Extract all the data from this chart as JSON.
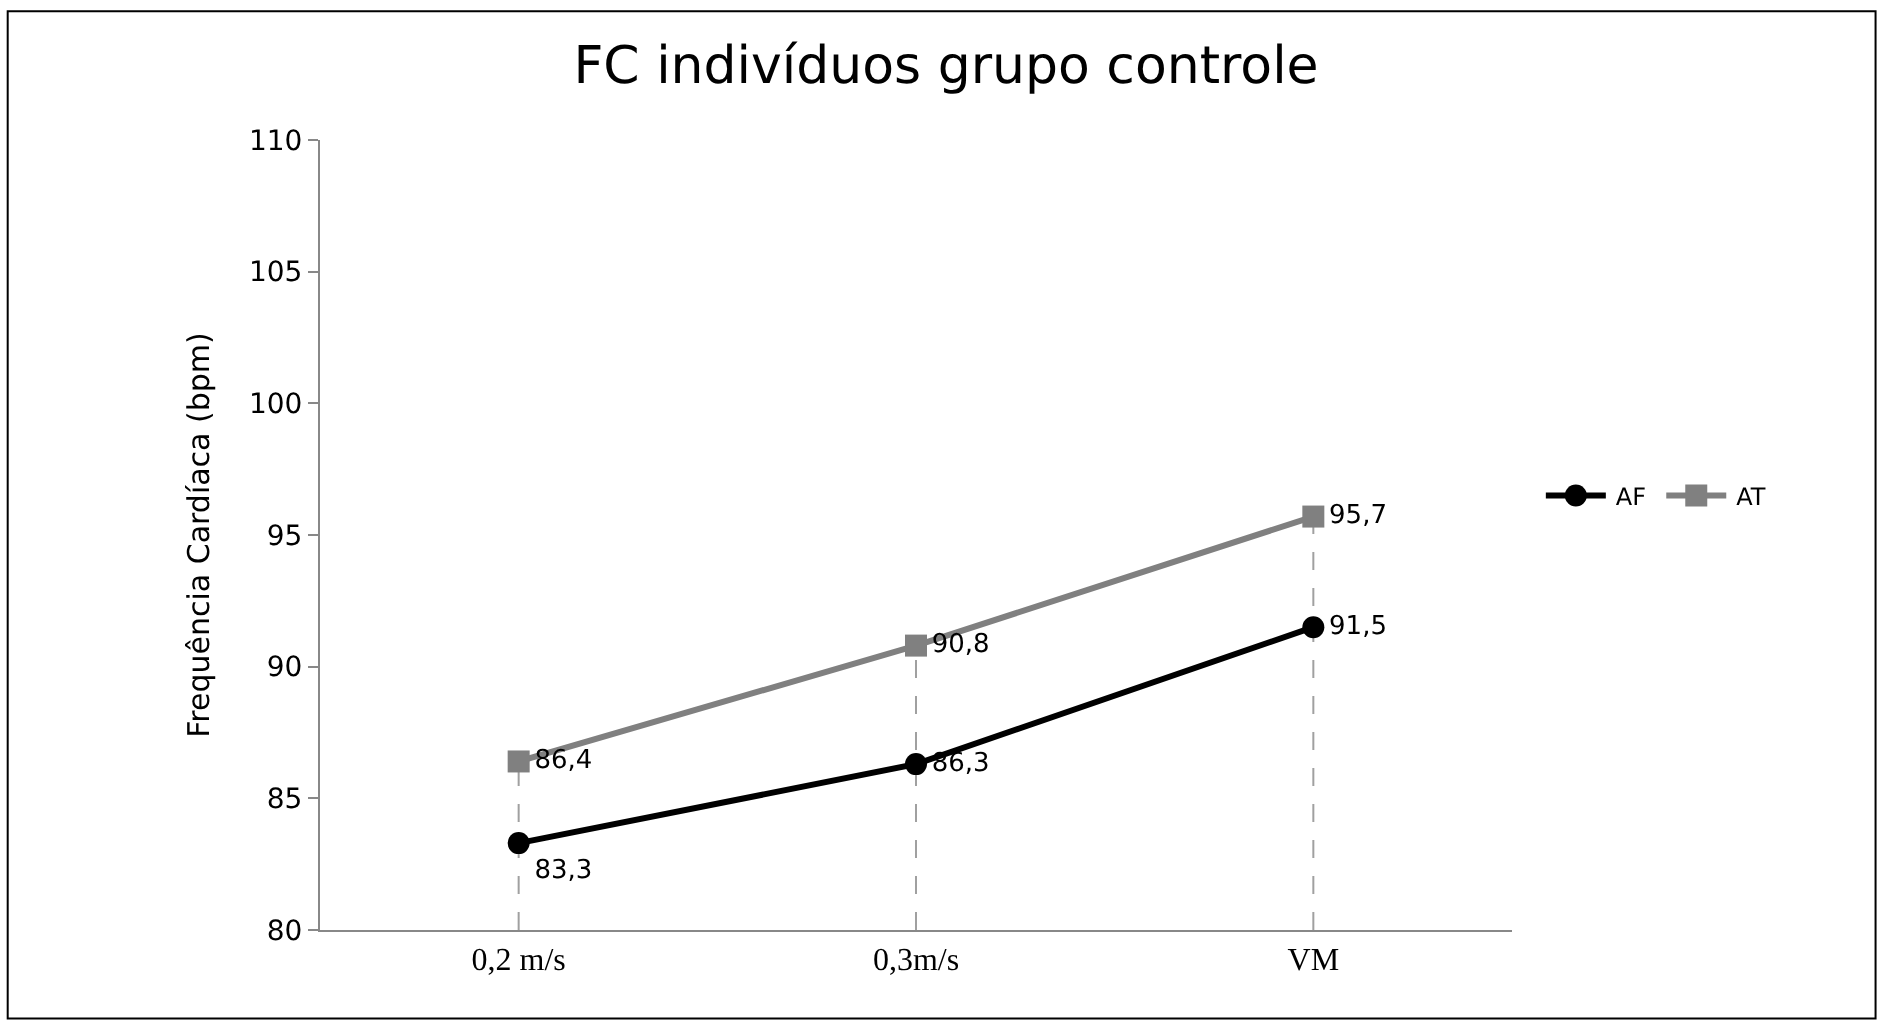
{
  "chart_data": {
    "type": "line",
    "title": "FC indivíduos grupo controle",
    "ylabel": "Frequência Cardíaca (bpm)",
    "categories": [
      "0,2 m/s",
      "0,3m/s",
      "VM"
    ],
    "series": [
      {
        "name": "AF",
        "color": "#000000",
        "values": [
          83.3,
          86.3,
          91.5
        ],
        "value_labels": [
          "83,3",
          "86,3",
          "91,5"
        ],
        "marker": "circle"
      },
      {
        "name": "AT",
        "color": "#808080",
        "values": [
          86.4,
          90.8,
          95.7
        ],
        "value_labels": [
          "86,4",
          "90,8",
          "95,7"
        ],
        "marker": "square"
      }
    ],
    "ylim": [
      80,
      110
    ],
    "yticks": [
      80,
      85,
      90,
      95,
      100,
      105,
      110
    ],
    "ref_lines": [
      {
        "axis": "x",
        "value": "0,2 m/s",
        "label": null,
        "color": "#a0a0a0",
        "line_style": "dashed"
      },
      {
        "axis": "x",
        "value": "0,3m/s",
        "label": null,
        "color": "#a0a0a0",
        "line_style": "dashed"
      },
      {
        "axis": "x",
        "value": "VM",
        "label": null,
        "color": "#a0a0a0",
        "line_style": "dashed"
      }
    ],
    "legend": "right",
    "line_style": "solid"
  }
}
